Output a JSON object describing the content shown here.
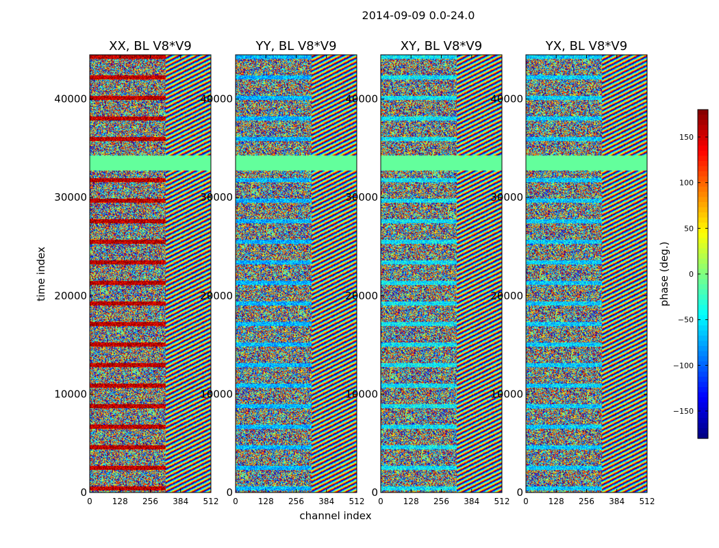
{
  "figure_title": "2014-09-09 0.0-24.0",
  "xlabel": "channel index",
  "ylabel": "time index",
  "colorbar": {
    "label": "phase (deg.)",
    "range": [
      -180,
      180
    ],
    "ticks": [
      -150,
      -100,
      -50,
      0,
      50,
      100,
      150
    ],
    "tick_labels": [
      "−150",
      "−100",
      "−50",
      "0",
      "50",
      "100",
      "150"
    ],
    "colormap": "jet"
  },
  "chart_data": {
    "type": "heatmap",
    "title": "2014-09-09 0.0-24.0",
    "xlabel": "channel index",
    "ylabel": "time index",
    "xlim": [
      0,
      512
    ],
    "ylim": [
      0,
      44500
    ],
    "xticks": [
      0,
      128,
      256,
      384,
      512
    ],
    "yticks": [
      0,
      10000,
      20000,
      30000,
      40000
    ],
    "color_range": [
      -180,
      180
    ],
    "colorbar_label": "phase (deg.)",
    "panels": [
      {
        "title": "XX, BL V8*V9",
        "bias": 160
      },
      {
        "title": "YY, BL V8*V9",
        "bias": -70
      },
      {
        "title": "XY, BL V8*V9",
        "bias": -50
      },
      {
        "title": "YX, BL V8*V9",
        "bias": -60
      }
    ],
    "constant_band": {
      "time_start": 32800,
      "time_end": 34300,
      "phase": -10
    },
    "notes": "Phase waterfall per polarization for baseline V8*V9; noisy random phase with fringe-like striping above channel ~320 and a constant-phase gap near time index 33000-34000."
  }
}
